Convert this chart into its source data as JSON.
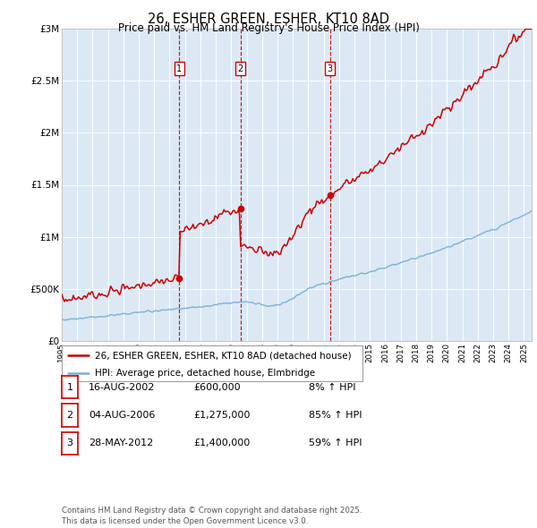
{
  "title": "26, ESHER GREEN, ESHER, KT10 8AD",
  "subtitle": "Price paid vs. HM Land Registry's House Price Index (HPI)",
  "plot_bg_color": "#dce9f5",
  "red_line_color": "#cc0000",
  "blue_line_color": "#7ab0d4",
  "dashed_line_color": "#cc0000",
  "sale_marker_color": "#cc0000",
  "sale_points": [
    {
      "label": "1",
      "date_x": 2002.62,
      "price": 600000
    },
    {
      "label": "2",
      "date_x": 2006.59,
      "price": 1275000
    },
    {
      "label": "3",
      "date_x": 2012.41,
      "price": 1400000
    }
  ],
  "xmin": 1995,
  "xmax": 2025.5,
  "ymin": 0,
  "ymax": 3000000,
  "yticks": [
    0,
    500000,
    1000000,
    1500000,
    2000000,
    2500000,
    3000000
  ],
  "ytick_labels": [
    "£0",
    "£500K",
    "£1M",
    "£1.5M",
    "£2M",
    "£2.5M",
    "£3M"
  ],
  "legend_red_label": "26, ESHER GREEN, ESHER, KT10 8AD (detached house)",
  "legend_blue_label": "HPI: Average price, detached house, Elmbridge",
  "footnote": "Contains HM Land Registry data © Crown copyright and database right 2025.\nThis data is licensed under the Open Government Licence v3.0.",
  "table_rows": [
    {
      "num": "1",
      "date": "16-AUG-2002",
      "price": "£600,000",
      "hpi": "8% ↑ HPI"
    },
    {
      "num": "2",
      "date": "04-AUG-2006",
      "price": "£1,275,000",
      "hpi": "85% ↑ HPI"
    },
    {
      "num": "3",
      "date": "28-MAY-2012",
      "price": "£1,400,000",
      "hpi": "59% ↑ HPI"
    }
  ]
}
